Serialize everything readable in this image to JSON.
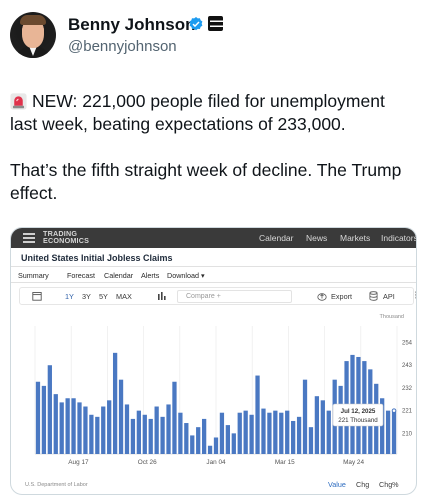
{
  "tweet": {
    "display_name": "Benny Johnson",
    "handle": "@bennyjohnson",
    "verified_icon": "verified-badge-icon",
    "affiliate_icon": "affiliate-badge-icon",
    "paragraph_1": "NEW: 221,000 people filed for unemployment last week, beating expectations of 233,000.",
    "paragraph_2": "That’s the fifth straight week of decline. The Trump effect.",
    "siren_icon": "siren-icon",
    "accent_color": "#1d9bf0"
  },
  "embed": {
    "logo_line1": "TRADING",
    "logo_line2": "ECONOMICS",
    "nav": [
      "Calendar",
      "News",
      "Markets",
      "Indicators"
    ],
    "page_title": "United States Initial Jobless Claims",
    "tabs": [
      "Summary",
      "Forecast",
      "Calendar",
      "Alerts",
      "Download ▾"
    ],
    "toolbar": {
      "ranges": [
        "1Y",
        "3Y",
        "5Y",
        "MAX"
      ],
      "active_range": "1Y",
      "compare_placeholder": "Compare +",
      "export_label": "Export",
      "api_label": "API",
      "more_label": "⋮"
    },
    "source": "U.S. Department of Labor",
    "footer_links": [
      "Value",
      "Chg",
      "Chg%"
    ],
    "active_footer": "Value",
    "bar_color": "#4a78c2",
    "tooltip_date": "Jul 12, 2025",
    "tooltip_value": "221 Thousand"
  },
  "chart_data": {
    "type": "bar",
    "title": "United States Initial Jobless Claims",
    "unit": "Thousand",
    "x_tick_labels": [
      "Aug 17",
      "Oct 26",
      "Jan 04",
      "Mar 15",
      "May 24"
    ],
    "y_tick_labels": [
      "210",
      "221",
      "232",
      "243",
      "254"
    ],
    "ylim": [
      200,
      262
    ],
    "grid": "vertical",
    "legend": "none",
    "values": [
      235,
      233,
      243,
      229,
      225,
      227,
      227,
      225,
      223,
      219,
      218,
      223,
      226,
      249,
      236,
      224,
      217,
      221,
      219,
      217,
      223,
      218,
      224,
      235,
      220,
      215,
      209,
      213,
      217,
      204,
      208,
      220,
      214,
      210,
      220,
      221,
      219,
      238,
      222,
      220,
      221,
      220,
      221,
      216,
      218,
      236,
      213,
      228,
      226,
      221,
      236,
      233,
      245,
      248,
      247,
      245,
      241,
      234,
      227,
      221,
      221
    ],
    "highlighted": {
      "date": "Jul 12, 2025",
      "value": 221
    }
  }
}
